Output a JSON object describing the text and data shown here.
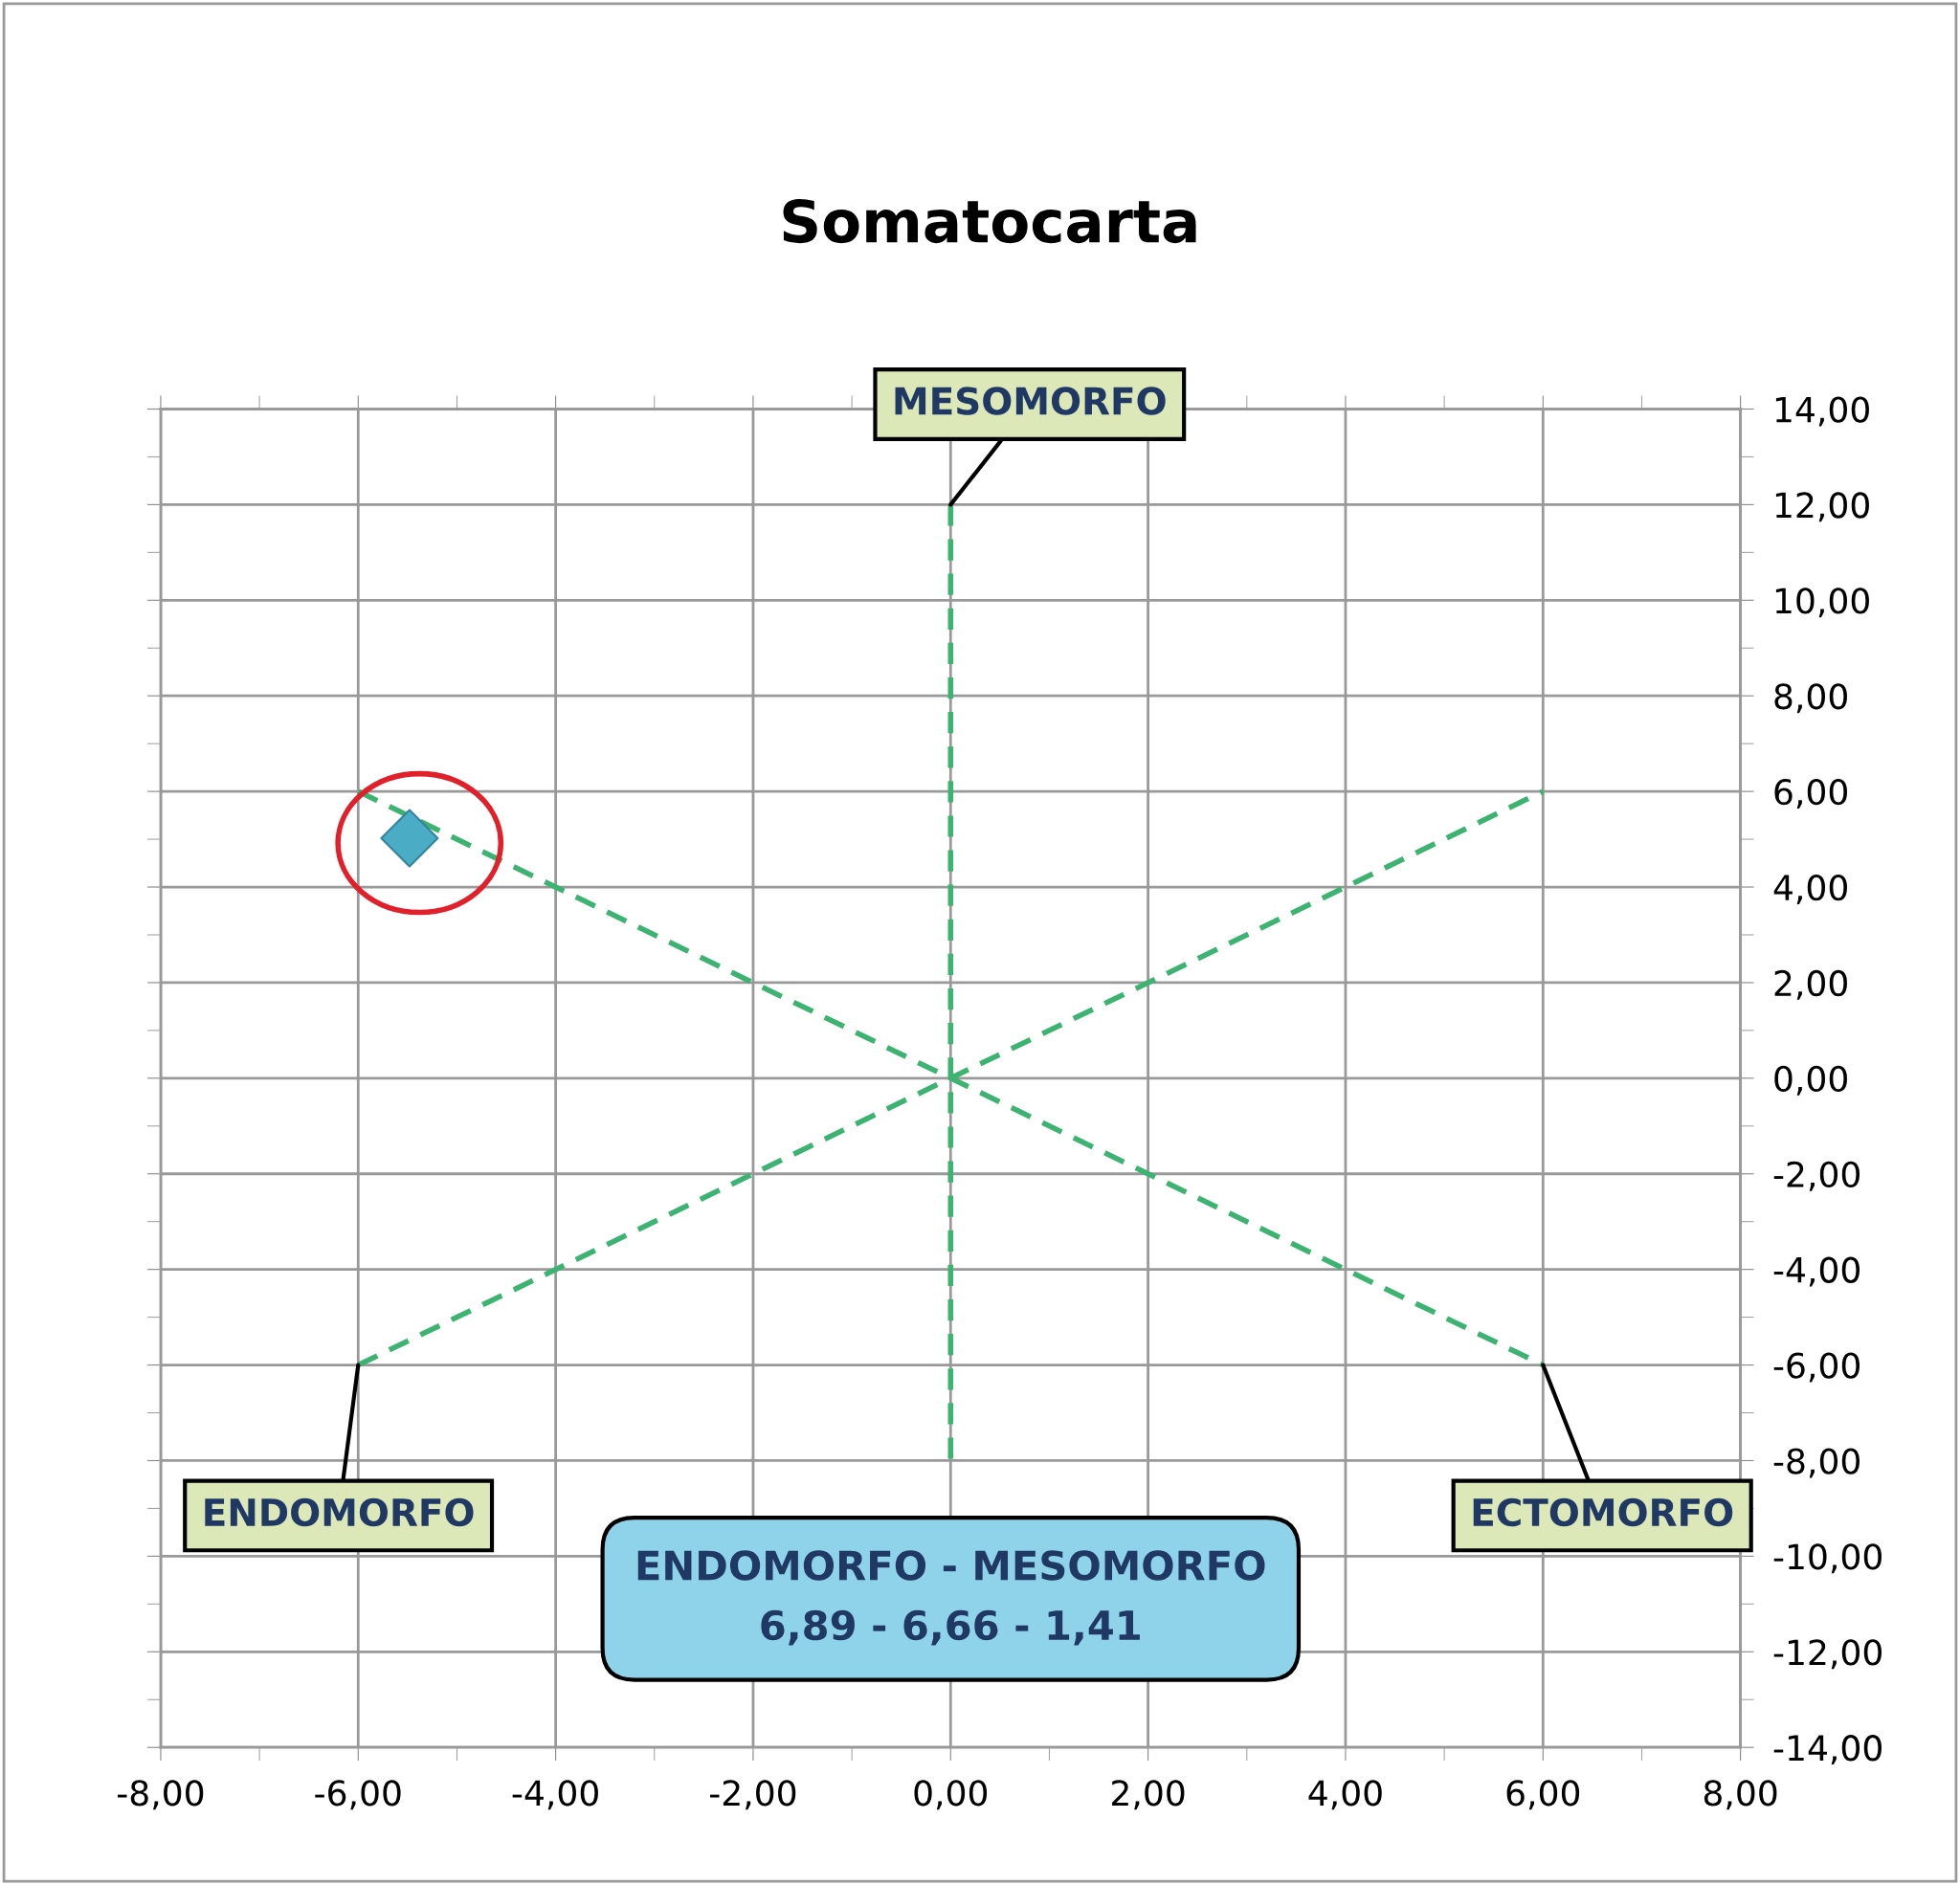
{
  "chart_data": {
    "type": "scatter",
    "title": "Somatocarta",
    "series": [
      {
        "type": "line",
        "color": "#3cb371",
        "line_style": "dashed",
        "marker": "none",
        "x": [
          -6,
          6
        ],
        "values": [
          -6,
          6
        ]
      },
      {
        "type": "line",
        "color": "#3cb371",
        "line_style": "dashed",
        "marker": "none",
        "x": [
          -6,
          6
        ],
        "values": [
          6,
          -6
        ]
      },
      {
        "type": "line",
        "color": "#3cb371",
        "line_style": "dashed",
        "marker": "none",
        "x": [
          0,
          0
        ],
        "values": [
          12,
          -8
        ]
      },
      {
        "color": "#4bacc6",
        "marker": "diamond",
        "x": [
          -5.48
        ],
        "values": [
          5.02
        ]
      }
    ],
    "annotations": [
      {
        "text": "MESOMORFO",
        "x": 0,
        "y": 12
      },
      {
        "text": "ENDOMORFO",
        "x": -6,
        "y": -6
      },
      {
        "text": "ECTOMORFO",
        "x": 6,
        "y": -6
      },
      "ENDOMORFO - MESOMORFO\n6,89 - 6,66 - 1,41"
    ],
    "xlim": [
      -8,
      8
    ],
    "xticks": [
      {
        "value": -8,
        "label": "-8,00"
      },
      {
        "value": -6,
        "label": "-6,00"
      },
      {
        "value": -4,
        "label": "-4,00"
      },
      {
        "value": -2,
        "label": "-2,00"
      },
      {
        "value": 0,
        "label": "0,00"
      },
      {
        "value": 2,
        "label": "2,00"
      },
      {
        "value": 4,
        "label": "4,00"
      },
      {
        "value": 6,
        "label": "6,00"
      },
      {
        "value": 8,
        "label": "8,00"
      }
    ],
    "ylim": [
      -14,
      14
    ],
    "yticks": [
      {
        "value": -14,
        "label": "-14,00"
      },
      {
        "value": -12,
        "label": "-12,00"
      },
      {
        "value": -10,
        "label": "-10,00"
      },
      {
        "value": -8,
        "label": "-8,00"
      },
      {
        "value": -6,
        "label": "-6,00"
      },
      {
        "value": -4,
        "label": "-4,00"
      },
      {
        "value": -2,
        "label": "-2,00"
      },
      {
        "value": 0,
        "label": "0,00"
      },
      {
        "value": 2,
        "label": "2,00"
      },
      {
        "value": 4,
        "label": "4,00"
      },
      {
        "value": 6,
        "label": "6,00"
      },
      {
        "value": 8,
        "label": "8,00"
      },
      {
        "value": 10,
        "label": "10,00"
      },
      {
        "value": 12,
        "label": "12,00"
      },
      {
        "value": 14,
        "label": "14,00"
      }
    ],
    "grid": true
  }
}
